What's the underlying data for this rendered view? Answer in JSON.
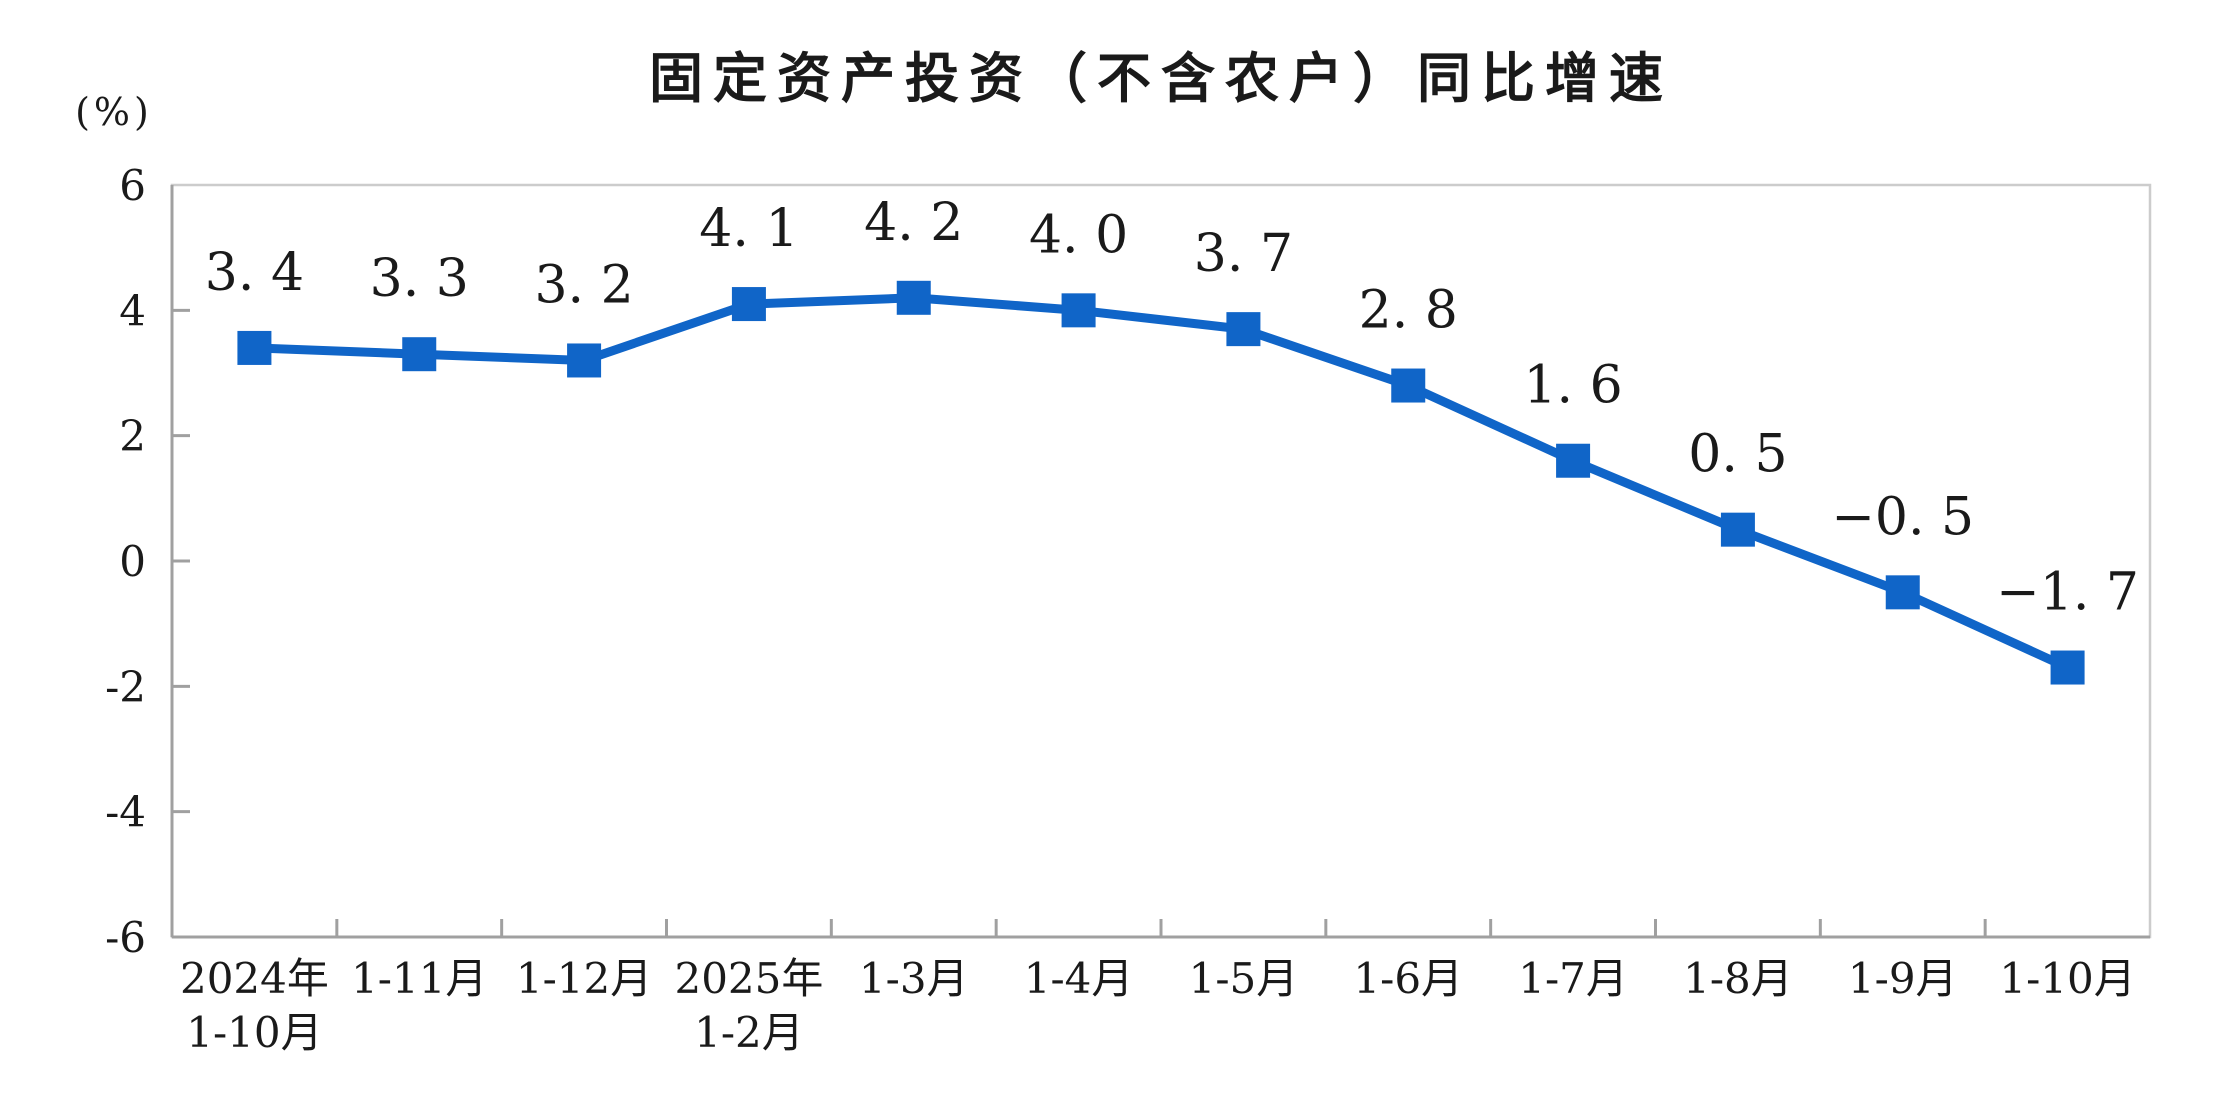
{
  "page": {
    "background": "#ffffff"
  },
  "chart_data": {
    "type": "line",
    "title": "固定资产投资（不含农户）同比增速",
    "ylabel": "(%)",
    "xlabel": "",
    "categories": [
      "2024年\n1-10月",
      "1-11月",
      "1-12月",
      "2025年\n1-2月",
      "1-3月",
      "1-4月",
      "1-5月",
      "1-6月",
      "1-7月",
      "1-8月",
      "1-9月",
      "1-10月"
    ],
    "values": [
      3.4,
      3.3,
      3.2,
      4.1,
      4.2,
      4.0,
      3.7,
      2.8,
      1.6,
      0.5,
      -0.5,
      -1.7
    ],
    "value_labels": [
      "3. 4",
      "3. 3",
      "3. 2",
      "4. 1",
      "4. 2",
      "4. 0",
      "3. 7",
      "2. 8",
      "1. 6",
      "0. 5",
      "−0. 5",
      "−1. 7"
    ],
    "ylim": [
      -6,
      6
    ],
    "yticks": [
      6,
      4,
      2,
      0,
      -2,
      -4,
      -6
    ],
    "grid": false,
    "legend": "none",
    "marker": "square",
    "colors": {
      "line": "#1065C8",
      "marker": "#1065C8",
      "axis": "#a0a0a0",
      "frame": "#cccccc",
      "text": "#1a1a1a"
    }
  }
}
